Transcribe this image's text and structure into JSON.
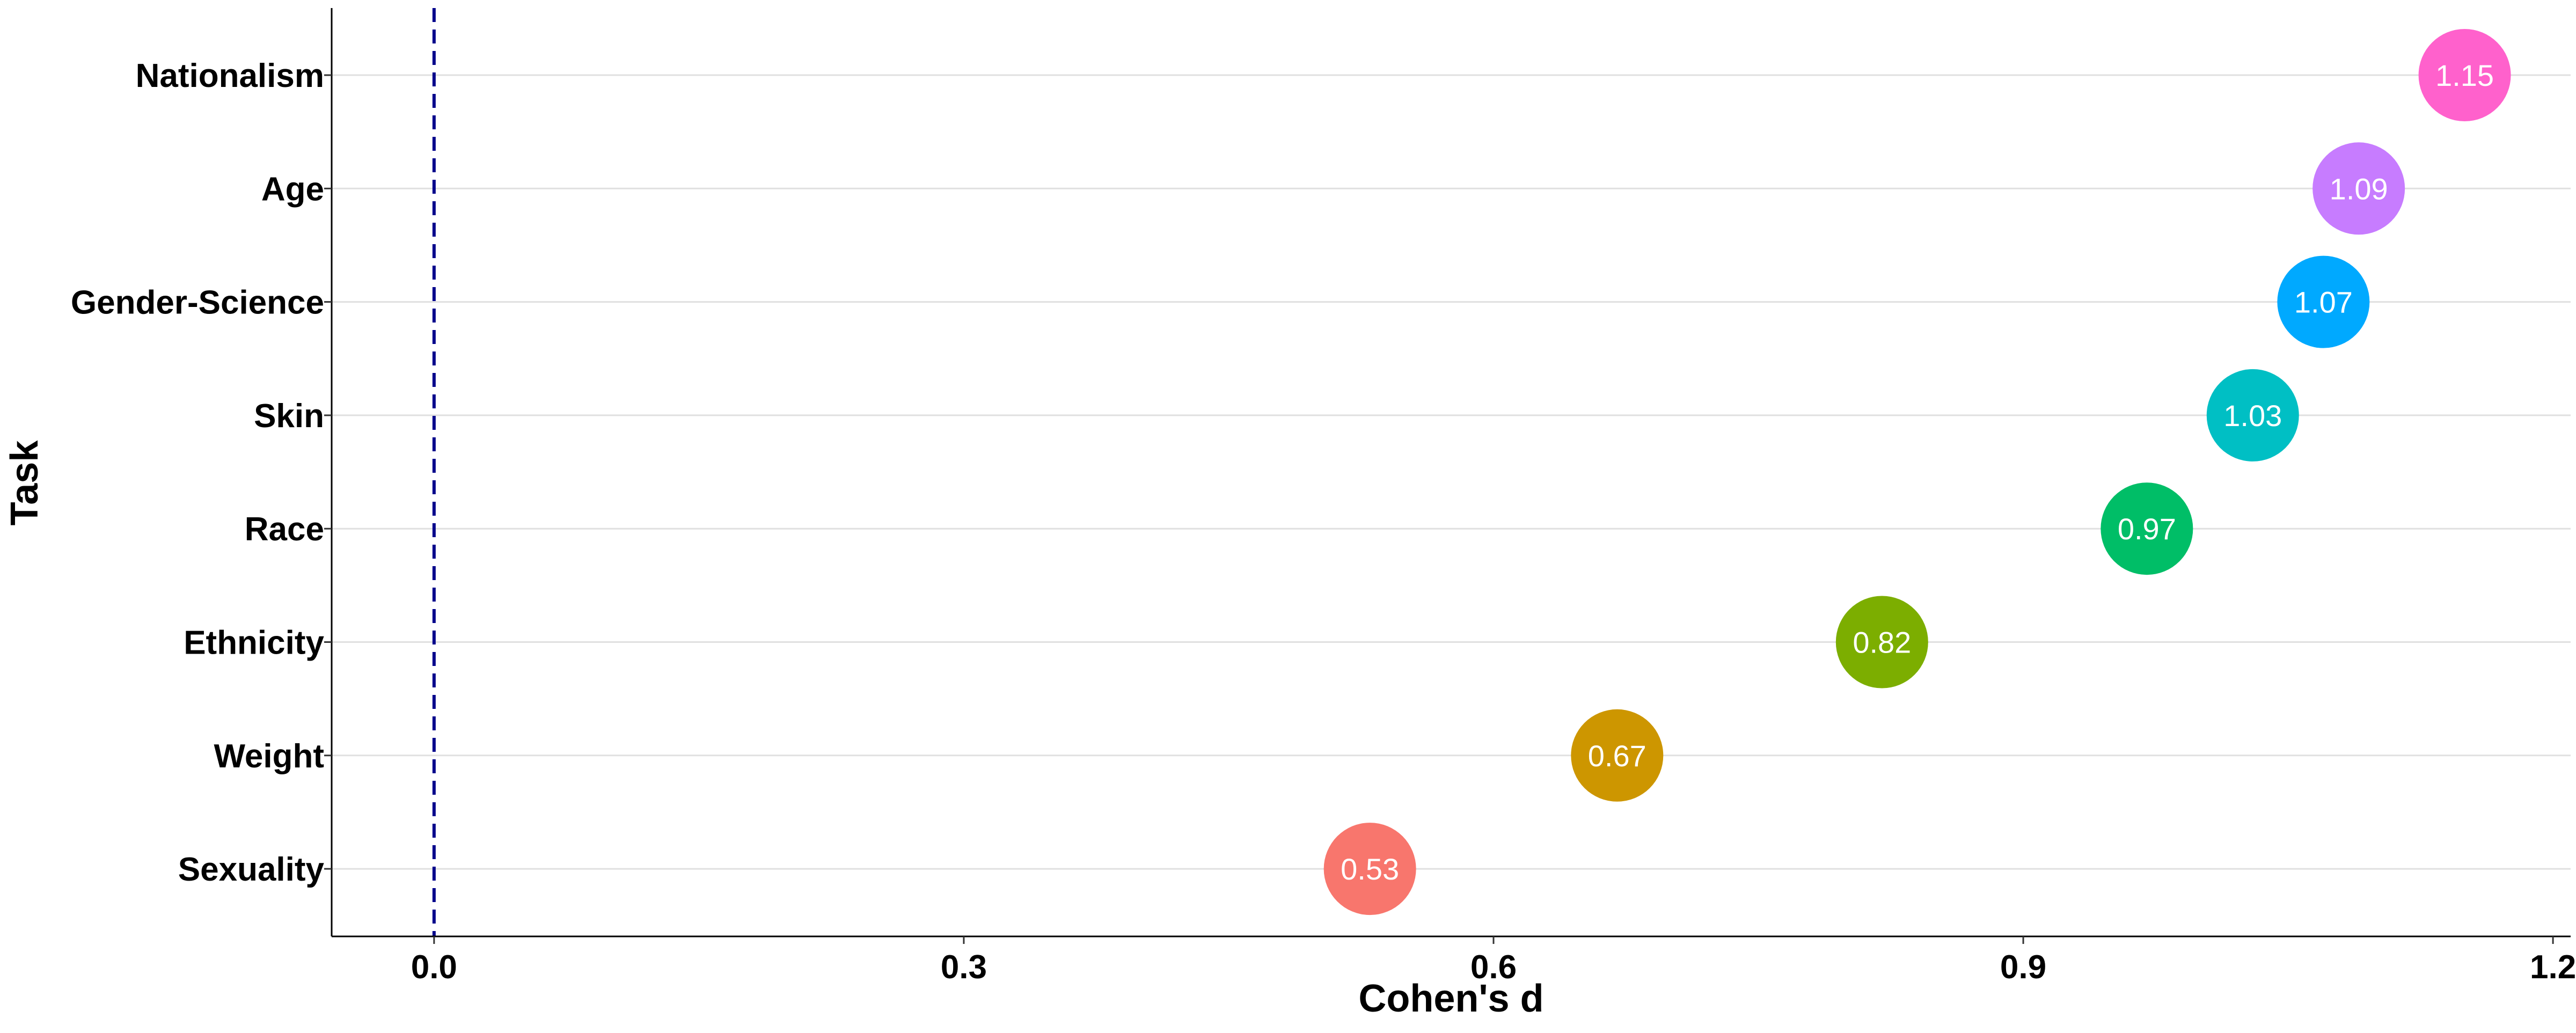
{
  "chart_data": {
    "type": "scatter",
    "title": "",
    "xlabel": "Cohen's d",
    "ylabel": "Task",
    "xlim": [
      -0.058,
      1.21
    ],
    "xticks": [
      0.0,
      0.3,
      0.6,
      0.9,
      1.2
    ],
    "xtick_labels": [
      "0.0",
      "0.3",
      "0.6",
      "0.9",
      "1.2"
    ],
    "reference_line": {
      "x": 0.0,
      "style": "dashed",
      "color": "#00008B"
    },
    "grid": {
      "horizontal": true,
      "vertical": false,
      "color": "#E0E0E0"
    },
    "legend": "none",
    "categories": [
      "Nationalism",
      "Age",
      "Gender-Science",
      "Skin",
      "Race",
      "Ethnicity",
      "Weight",
      "Sexuality"
    ],
    "points": [
      {
        "task": "Nationalism",
        "value": 1.15,
        "label": "1.15",
        "color": "#FF61CC"
      },
      {
        "task": "Age",
        "value": 1.09,
        "label": "1.09",
        "color": "#C77CFF"
      },
      {
        "task": "Gender-Science",
        "value": 1.07,
        "label": "1.07",
        "color": "#00A9FF"
      },
      {
        "task": "Skin",
        "value": 1.03,
        "label": "1.03",
        "color": "#00BFC4"
      },
      {
        "task": "Race",
        "value": 0.97,
        "label": "0.97",
        "color": "#00BE67"
      },
      {
        "task": "Ethnicity",
        "value": 0.82,
        "label": "0.82",
        "color": "#7CAE00"
      },
      {
        "task": "Weight",
        "value": 0.67,
        "label": "0.67",
        "color": "#CD9600"
      },
      {
        "task": "Sexuality",
        "value": 0.53,
        "label": "0.53",
        "color": "#F8766D"
      }
    ]
  }
}
